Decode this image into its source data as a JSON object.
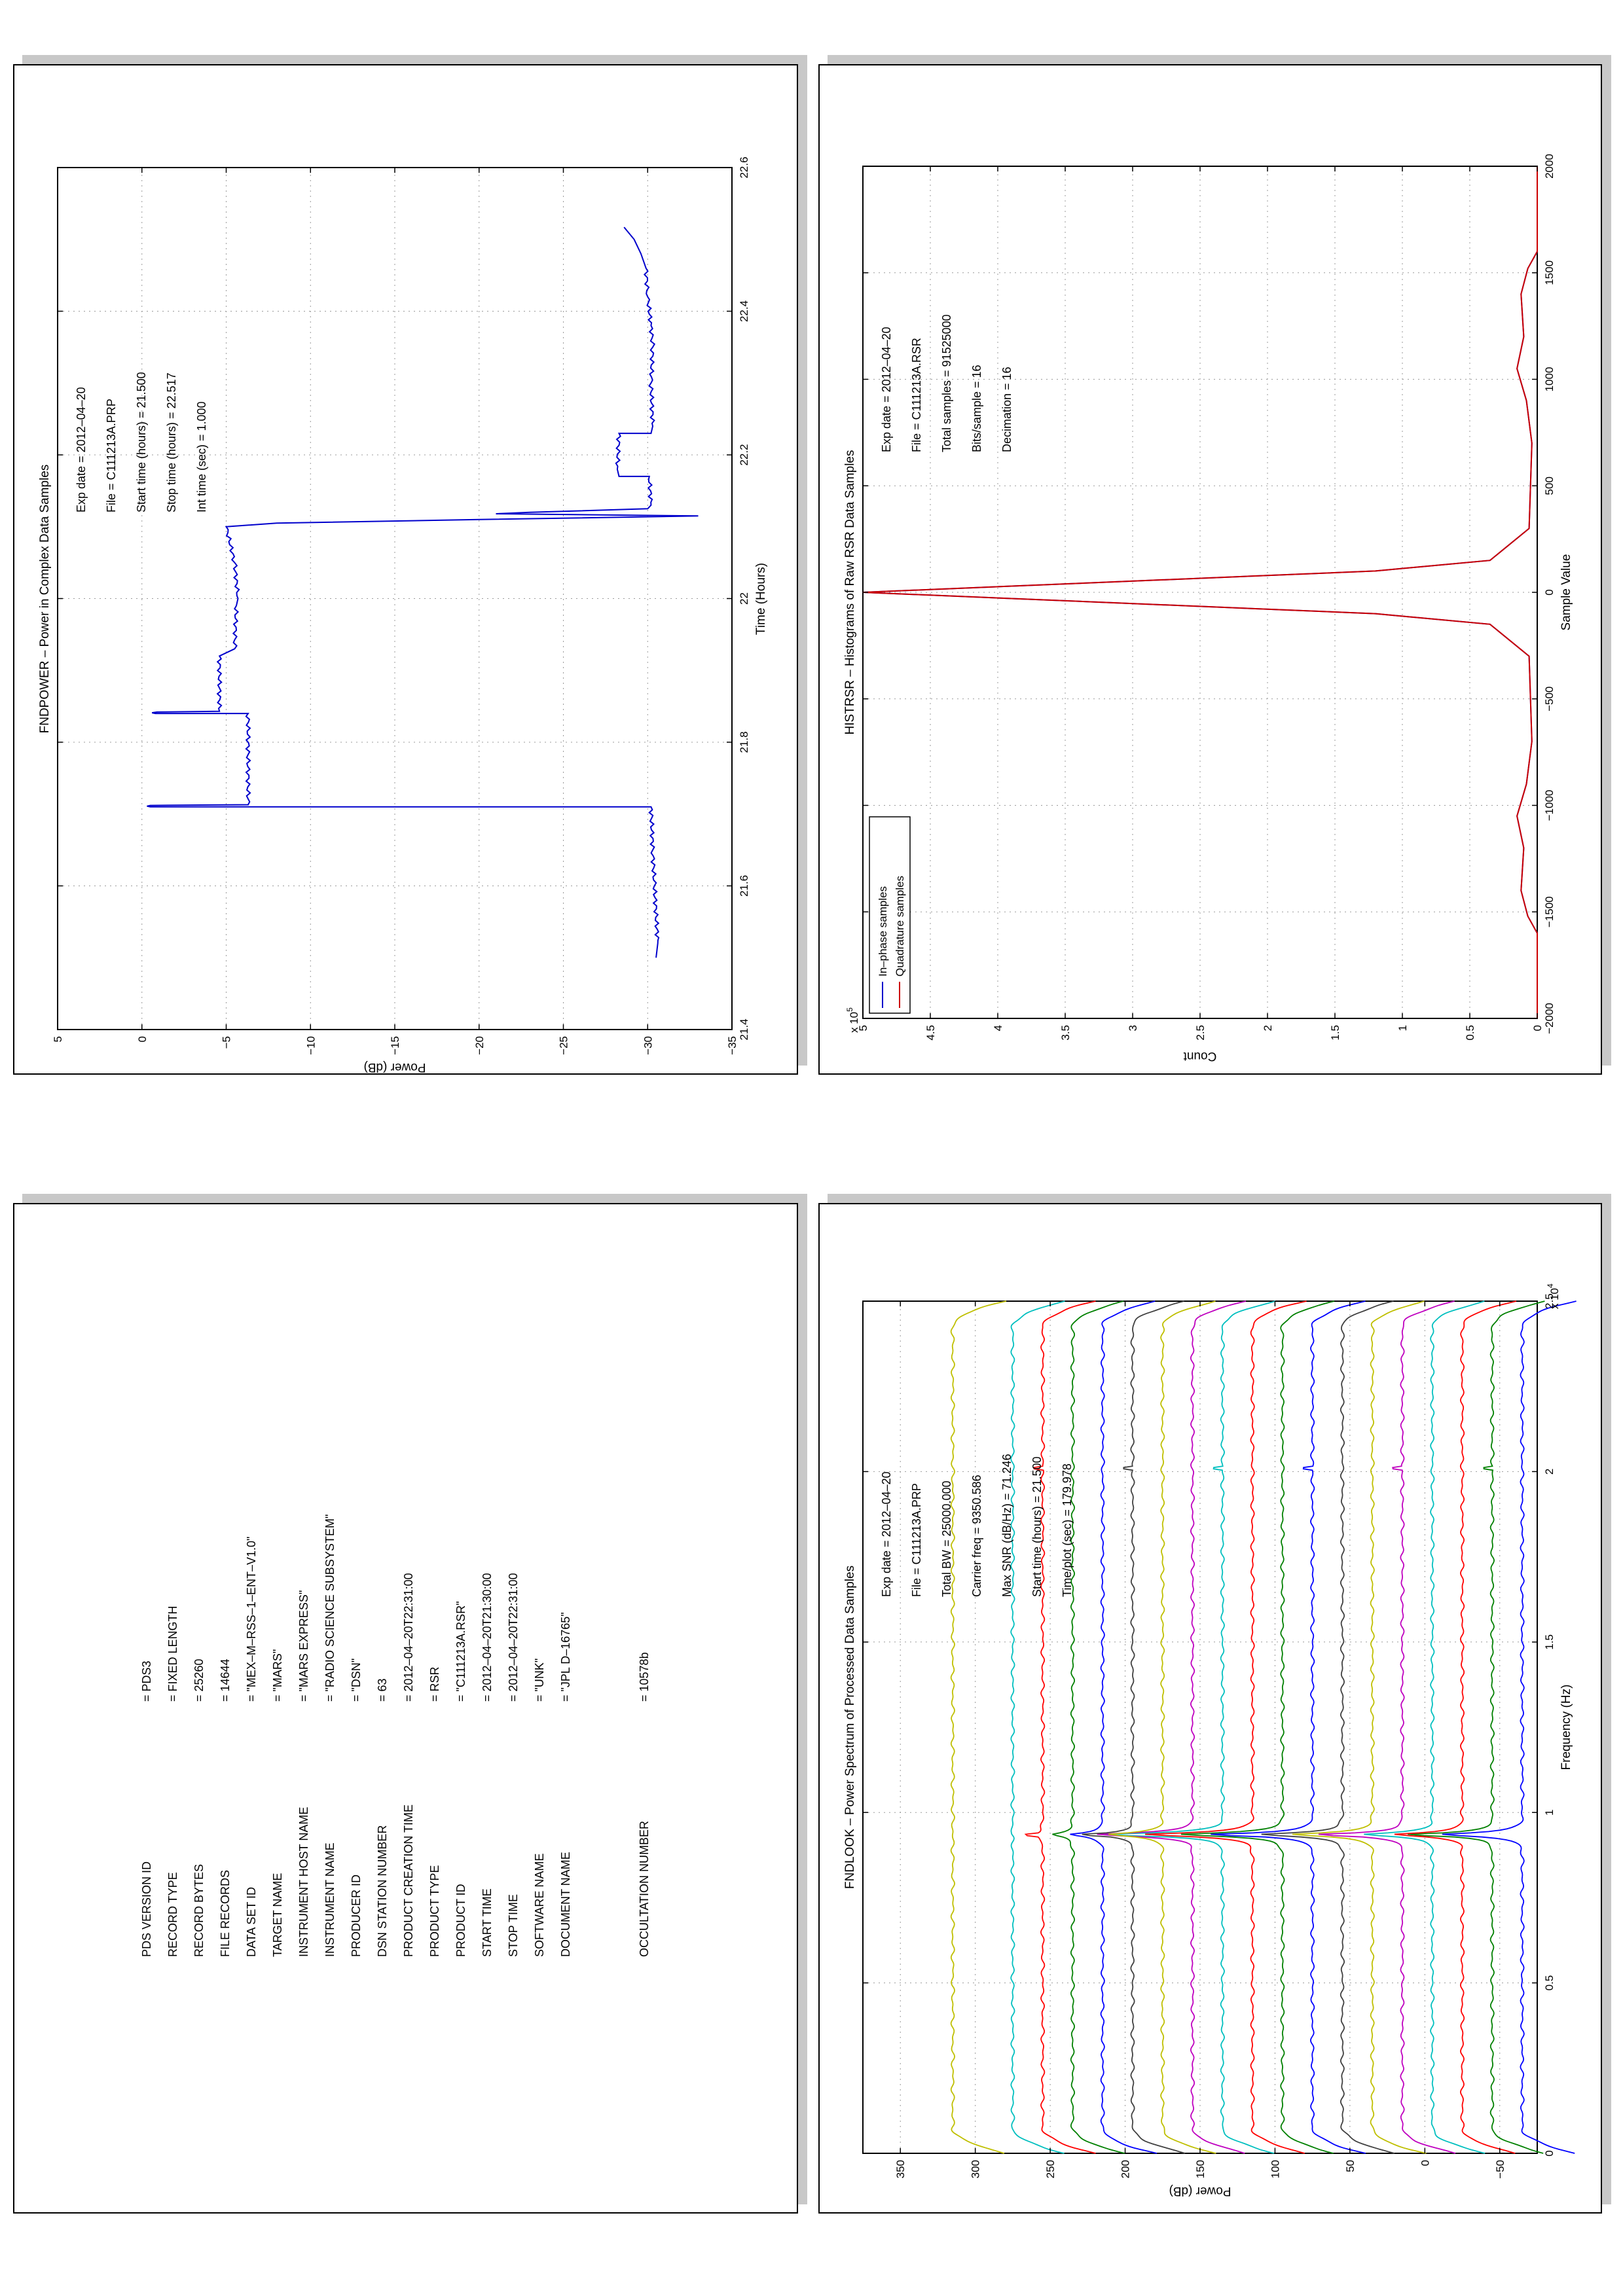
{
  "panels": {
    "histrsr": {
      "title": "HISTRSR – Histograms of Raw RSR Data Samples",
      "info_lines": [
        "Exp date = 2012–04–20",
        "File = C111213A.RSR",
        "Total samples =  91525000",
        "Bits/sample   =       16",
        "Decimation    =       16"
      ]
    },
    "fndpower": {
      "title": "FNDPOWER – Power in Complex Data Samples",
      "info_lines": [
        "Exp date = 2012–04–20",
        "File = C111213A.PRP",
        "Start time (hours) = 21.500",
        "Stop time (hours) =  22.517",
        "Int time (sec) =    1.000"
      ]
    },
    "fndlook": {
      "title": "FNDLOOK – Power Spectrum of Processed Data Samples",
      "info_lines": [
        "Exp date = 2012–04–20",
        "File = C111213A.PRP",
        "Total BW =     25000.000",
        "Carrier freq =   9350.586",
        "Max SNR (dB/Hz) =     71.246",
        "Start time (hours) =  21.500",
        "Time/plot (sec) =    179.978"
      ]
    },
    "label": {
      "rows": [
        {
          "key": "PDS VERSION ID",
          "value": "= PDS3"
        },
        {
          "key": "RECORD TYPE",
          "value": "= FIXED LENGTH"
        },
        {
          "key": "RECORD BYTES",
          "value": "= 25260"
        },
        {
          "key": "FILE RECORDS",
          "value": "= 14644"
        },
        {
          "key": "DATA SET ID",
          "value": "= \"MEX–M–RSS–1–ENT–V1.0\""
        },
        {
          "key": "TARGET NAME",
          "value": "= \"MARS\""
        },
        {
          "key": "INSTRUMENT HOST NAME",
          "value": "= \"MARS EXPRESS\""
        },
        {
          "key": "INSTRUMENT NAME",
          "value": "= \"RADIO SCIENCE SUBSYSTEM\""
        },
        {
          "key": "PRODUCER ID",
          "value": "= \"DSN\""
        },
        {
          "key": "DSN STATION NUMBER",
          "value": "= 63"
        },
        {
          "key": "PRODUCT CREATION TIME",
          "value": "= 2012–04–20T22:31:00"
        },
        {
          "key": "PRODUCT TYPE",
          "value": "= RSR"
        },
        {
          "key": "PRODUCT ID",
          "value": "= \"C111213A.RSR\""
        },
        {
          "key": "START TIME",
          "value": "= 2012–04–20T21:30:00"
        },
        {
          "key": "STOP TIME",
          "value": "= 2012–04–20T22:31:00"
        },
        {
          "key": "SOFTWARE NAME",
          "value": "= \"UNK\""
        },
        {
          "key": "DOCUMENT NAME",
          "value": "= \"JPL D–16765\""
        },
        {
          "key": "OCCULTATION NUMBER",
          "value": "= 10578b"
        }
      ]
    }
  },
  "chart_data": [
    {
      "id": "histrsr",
      "type": "line",
      "title": "HISTRSR – Histograms of Raw RSR Data Samples",
      "xlabel": "Sample Value",
      "ylabel": "Count",
      "xlim": [
        -2000,
        2000
      ],
      "ylim": [
        0,
        5
      ],
      "y_exponent_label": "x 10",
      "y_exponent_power": "5",
      "x_ticks": [
        "−2000",
        "−1500",
        "−1000",
        "−500",
        "0",
        "500",
        "1000",
        "1500",
        "2000"
      ],
      "y_ticks": [
        "0",
        "0.5",
        "1",
        "1.5",
        "2",
        "2.5",
        "3",
        "3.5",
        "4",
        "4.5",
        "5"
      ],
      "grid": true,
      "legend_position": "top-left",
      "series": [
        {
          "name": "In–phase samples",
          "color": "#0000cc",
          "x": [
            -2000,
            -1600,
            -1520,
            -1400,
            -1200,
            -1050,
            -900,
            -700,
            -300,
            -150,
            -100,
            0,
            100,
            150,
            300,
            700,
            900,
            1050,
            1200,
            1400,
            1520,
            1600,
            2000
          ],
          "y": [
            0,
            0,
            0.07,
            0.12,
            0.1,
            0.15,
            0.08,
            0.04,
            0.06,
            0.35,
            1.2,
            5.0,
            1.2,
            0.35,
            0.06,
            0.04,
            0.08,
            0.15,
            0.1,
            0.12,
            0.07,
            0,
            0
          ]
        },
        {
          "name": "Quadrature samples",
          "color": "#cc0000",
          "x": [
            -2000,
            -1600,
            -1520,
            -1400,
            -1200,
            -1050,
            -900,
            -700,
            -300,
            -150,
            -100,
            0,
            100,
            150,
            300,
            700,
            900,
            1050,
            1200,
            1400,
            1520,
            1600,
            2000
          ],
          "y": [
            0,
            0,
            0.07,
            0.12,
            0.1,
            0.15,
            0.08,
            0.04,
            0.06,
            0.35,
            1.2,
            5.0,
            1.2,
            0.35,
            0.06,
            0.04,
            0.08,
            0.15,
            0.1,
            0.12,
            0.07,
            0,
            0
          ]
        }
      ]
    },
    {
      "id": "fndpower",
      "type": "line",
      "title": "FNDPOWER – Power in Complex Data Samples",
      "xlabel": "Time (Hours)",
      "ylabel": "Power (dB)",
      "xlim": [
        21.4,
        22.6
      ],
      "ylim": [
        -35,
        5
      ],
      "x_ticks": [
        "21.4",
        "21.6",
        "21.8",
        "22",
        "22.2",
        "22.4",
        "22.6"
      ],
      "y_ticks": [
        "−35",
        "−30",
        "−25",
        "−20",
        "−15",
        "−10",
        "−5",
        "0",
        "5"
      ],
      "grid": true,
      "series": [
        {
          "name": "",
          "color": "#0000cc",
          "x": [
            21.5,
            21.52,
            21.6,
            21.65,
            21.71,
            21.71,
            21.711,
            21.712,
            21.713,
            21.84,
            21.84,
            21.841,
            21.842,
            21.843,
            21.92,
            21.93,
            21.99,
            22.0,
            22.05,
            22.1,
            22.105,
            22.11,
            22.115,
            22.118,
            22.12,
            22.125,
            22.13,
            22.17,
            22.17,
            22.18,
            22.23,
            22.23,
            22.24,
            22.3,
            22.35,
            22.38,
            22.42,
            22.46,
            22.48,
            22.5,
            22.517
          ],
          "y": [
            -30.5,
            -30.6,
            -30.4,
            -30.3,
            -30.2,
            -0.5,
            -0.3,
            -0.5,
            -6.3,
            -6.3,
            -0.8,
            -0.6,
            -0.9,
            -4.6,
            -4.6,
            -5.5,
            -5.6,
            -5.7,
            -5.5,
            -5.0,
            -8.0,
            -20.0,
            -33.0,
            -21.0,
            -23.0,
            -30.0,
            -30.2,
            -30.1,
            -28.3,
            -28.2,
            -28.3,
            -30.2,
            -30.3,
            -30.2,
            -30.3,
            -30.2,
            -30.0,
            -29.9,
            -29.6,
            -29.2,
            -28.6
          ]
        }
      ]
    },
    {
      "id": "fndlook",
      "type": "line",
      "title": "FNDLOOK – Power Spectrum of Processed Data Samples",
      "xlabel": "Frequency (Hz)",
      "ylabel": "Power (dB)",
      "xlim": [
        0,
        25000
      ],
      "ylim": [
        -75,
        375
      ],
      "x_exponent_label": "x 10",
      "x_exponent_power": "4",
      "x_ticks": [
        "0",
        "0.5",
        "1",
        "1.5",
        "2",
        "2.5"
      ],
      "y_ticks": [
        "−50",
        "0",
        "50",
        "100",
        "150",
        "200",
        "250",
        "300",
        "350"
      ],
      "grid": true,
      "carrier_hz": 9350.586,
      "rolloff_hz": 750,
      "edge_drop_db": 35,
      "spike_freqs_hz": [
        9350,
        20100
      ],
      "series": [
        {
          "name": "",
          "color": "#0000ff",
          "baseline": -65,
          "peak": -5
        },
        {
          "name": "",
          "color": "#008000",
          "baseline": -45,
          "peak": 10
        },
        {
          "name": "",
          "color": "#ff0000",
          "baseline": -25,
          "peak": 25
        },
        {
          "name": "",
          "color": "#00bfbf",
          "baseline": -5,
          "peak": 45
        },
        {
          "name": "",
          "color": "#bf00bf",
          "baseline": 15,
          "peak": 70
        },
        {
          "name": "",
          "color": "#bfbf00",
          "baseline": 35,
          "peak": 95
        },
        {
          "name": "",
          "color": "#404040",
          "baseline": 55,
          "peak": 115
        },
        {
          "name": "",
          "color": "#0000ff",
          "baseline": 75,
          "peak": 145
        },
        {
          "name": "",
          "color": "#008000",
          "baseline": 95,
          "peak": 170
        },
        {
          "name": "",
          "color": "#ff0000",
          "baseline": 115,
          "peak": 195
        },
        {
          "name": "",
          "color": "#00bfbf",
          "baseline": 135,
          "peak": 215
        },
        {
          "name": "",
          "color": "#bf00bf",
          "baseline": 155,
          "peak": 225
        },
        {
          "name": "",
          "color": "#bfbf00",
          "baseline": 175,
          "peak": 215
        },
        {
          "name": "",
          "color": "#404040",
          "baseline": 195,
          "peak": 225
        },
        {
          "name": "",
          "color": "#0000ff",
          "baseline": 215,
          "peak": 240
        },
        {
          "name": "",
          "color": "#008000",
          "baseline": 235,
          "peak": 250
        },
        {
          "name": "",
          "color": "#ff0000",
          "baseline": 255,
          "peak": 262
        },
        {
          "name": "",
          "color": "#00bfbf",
          "baseline": 275,
          "peak": 276
        },
        {
          "name": "",
          "color": "#bfbf00",
          "baseline": 315,
          "peak": 315
        }
      ]
    }
  ]
}
